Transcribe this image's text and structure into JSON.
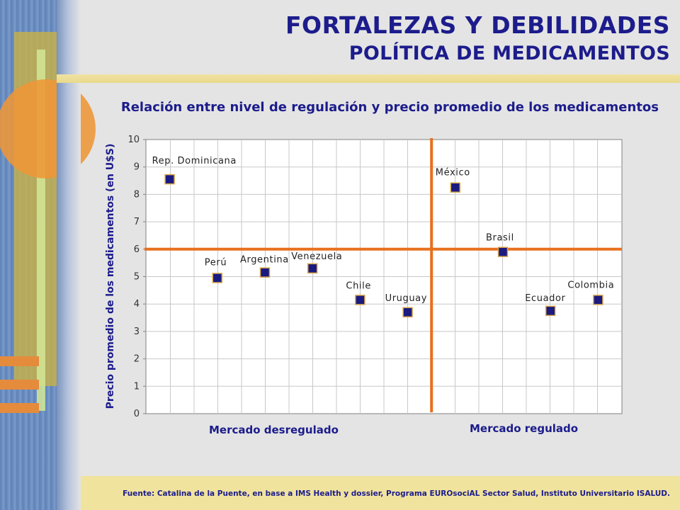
{
  "header": {
    "title": "FORTALEZAS Y DEBILIDADES",
    "subtitle": "POLÍTICA DE MEDICAMENTOS"
  },
  "chart_data": {
    "type": "scatter",
    "title": "Relación entre nivel de regulación y precio promedio de los medicamentos",
    "ylabel": "Precio promedio de los medicamentos (en U$S)",
    "xlabel": "",
    "ylim": [
      0,
      10
    ],
    "yticks": [
      "0",
      "1",
      "2",
      "3",
      "4",
      "5",
      "6",
      "7",
      "8",
      "9",
      "10"
    ],
    "grid": true,
    "reference_lines": {
      "horizontal_y": 6
    },
    "regions": [
      "Mercado desregulado",
      "Mercado regulado"
    ],
    "points": [
      {
        "label": "Rep. Dominicana",
        "y": 8.55
      },
      {
        "label": "Perú",
        "y": 4.95
      },
      {
        "label": "Argentina",
        "y": 5.15
      },
      {
        "label": "Venezuela",
        "y": 5.3
      },
      {
        "label": "Chile",
        "y": 4.15
      },
      {
        "label": "Uruguay",
        "y": 3.7
      },
      {
        "label": "México",
        "y": 8.25
      },
      {
        "label": "Brasil",
        "y": 5.9
      },
      {
        "label": "Ecuador",
        "y": 3.75
      },
      {
        "label": "Colombia",
        "y": 4.15
      }
    ],
    "colors": {
      "marker": "#1a1a80",
      "marker_border": "#d8a84a",
      "reference_line": "#e8701e",
      "grid": "#c8c8c8",
      "text": "#1c1c8c"
    }
  },
  "footer": {
    "source": "Fuente: Catalina de la Puente, en  base a IMS Health y dossier, Programa EUROsociAL Sector Salud, Instituto Universitario ISALUD."
  }
}
